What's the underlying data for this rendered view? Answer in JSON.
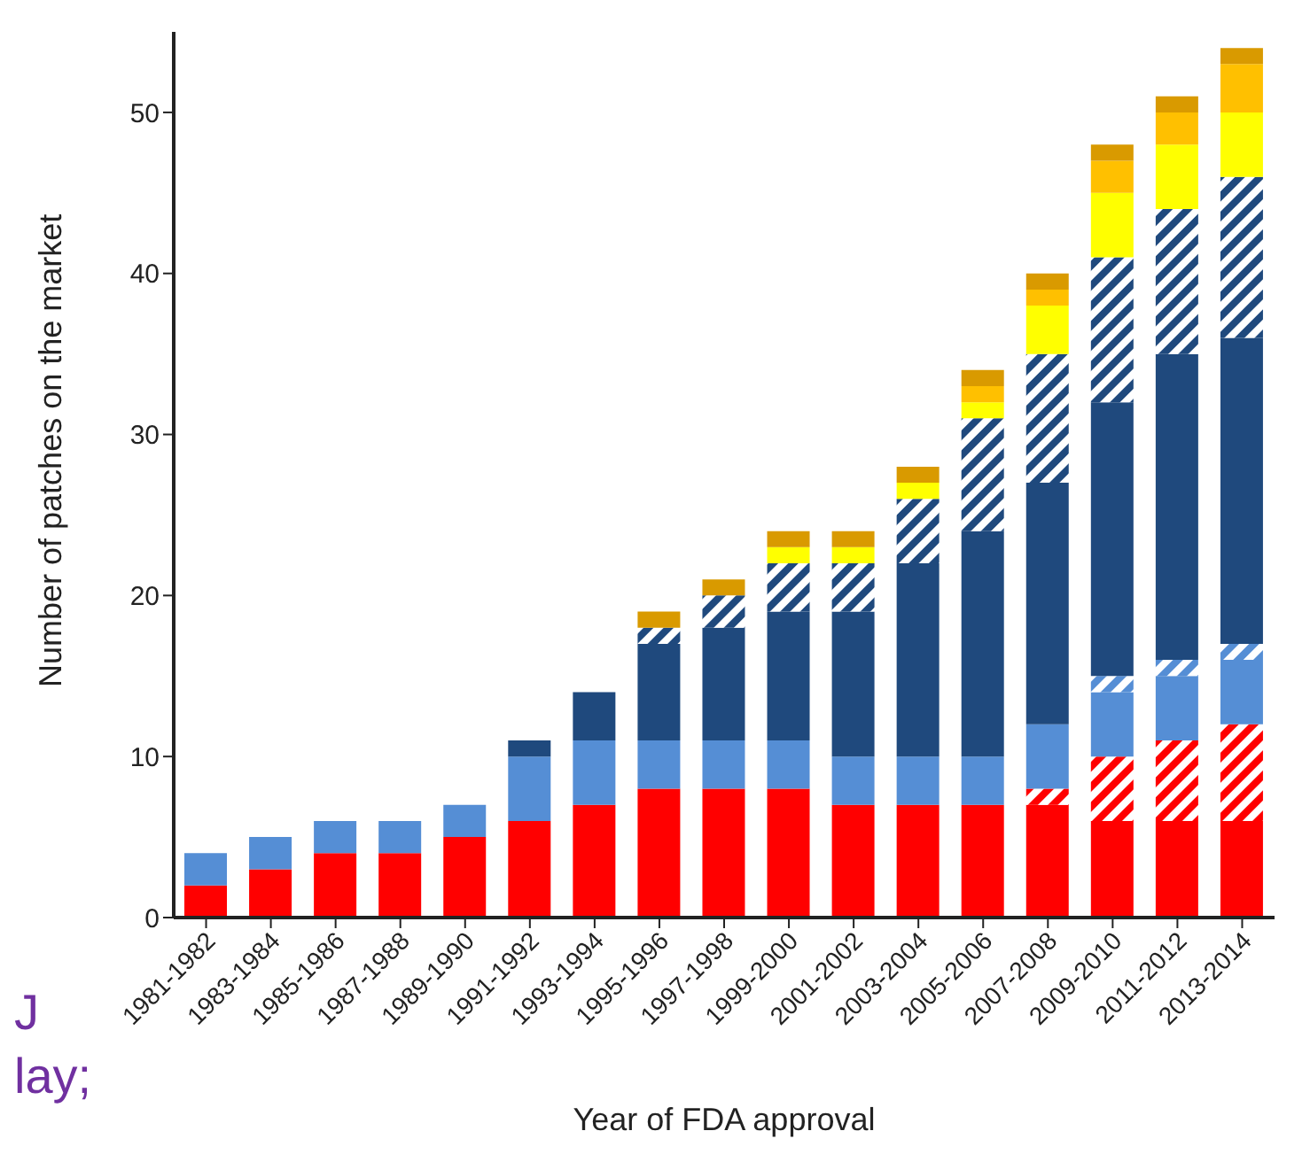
{
  "chart_data": {
    "type": "bar",
    "stacked": true,
    "xlabel": "Year of FDA approval",
    "ylabel": "Number of patches on the market",
    "categories": [
      "1981-1982",
      "1983-1984",
      "1985-1986",
      "1987-1988",
      "1989-1990",
      "1991-1992",
      "1993-1994",
      "1995-1996",
      "1997-1998",
      "1999-2000",
      "2001-2002",
      "2003-2004",
      "2005-2006",
      "2007-2008",
      "2009-2010",
      "2011-2012",
      "2013-2014"
    ],
    "series": [
      {
        "color": "#ff0000",
        "values": [
          2,
          3,
          4,
          4,
          5,
          6,
          7,
          8,
          8,
          8,
          7,
          7,
          7,
          7,
          6,
          6,
          6
        ]
      },
      {
        "color": "#ff0000",
        "values": [
          0,
          0,
          0,
          0,
          0,
          0,
          0,
          0,
          0,
          0,
          0,
          0,
          0,
          1,
          4,
          5,
          6
        ]
      },
      {
        "color": "#558ed5",
        "values": [
          2,
          2,
          2,
          2,
          2,
          4,
          4,
          3,
          3,
          3,
          3,
          3,
          3,
          4,
          4,
          4,
          4
        ]
      },
      {
        "color": "#558ed5",
        "values": [
          0,
          0,
          0,
          0,
          0,
          0,
          0,
          0,
          0,
          0,
          0,
          0,
          0,
          0,
          1,
          1,
          1
        ]
      },
      {
        "color": "#1f497d",
        "values": [
          0,
          0,
          0,
          0,
          0,
          1,
          3,
          6,
          7,
          8,
          9,
          12,
          14,
          15,
          17,
          19,
          19
        ]
      },
      {
        "color": "#1f497d",
        "values": [
          0,
          0,
          0,
          0,
          0,
          0,
          0,
          1,
          2,
          3,
          3,
          4,
          7,
          8,
          9,
          9,
          10
        ]
      },
      {
        "color": "#ffff00",
        "values": [
          0,
          0,
          0,
          0,
          0,
          0,
          0,
          0,
          0,
          1,
          1,
          1,
          1,
          3,
          4,
          4,
          4
        ]
      },
      {
        "color": "#ffc000",
        "values": [
          0,
          0,
          0,
          0,
          0,
          0,
          0,
          0,
          0,
          0,
          0,
          0,
          1,
          1,
          2,
          2,
          3
        ]
      },
      {
        "color": "#d99a00",
        "values": [
          0,
          0,
          0,
          0,
          0,
          0,
          0,
          1,
          1,
          1,
          1,
          1,
          1,
          1,
          1,
          1,
          1
        ]
      }
    ],
    "ylim": [
      0,
      55
    ],
    "yticks": [
      0,
      10,
      20,
      30,
      40,
      50
    ],
    "grid": false,
    "legend": false,
    "annotations": [
      "J",
      "lay;"
    ]
  }
}
